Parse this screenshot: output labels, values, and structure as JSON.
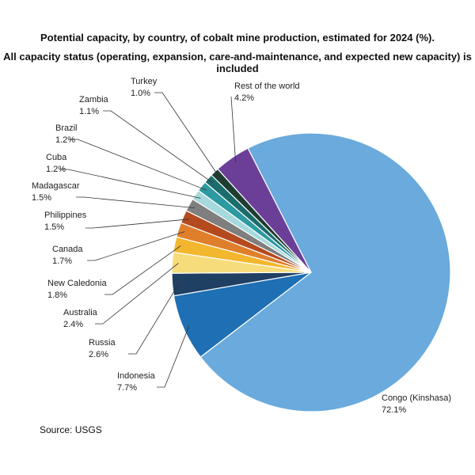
{
  "chart_data": {
    "type": "pie",
    "title": "Potential capacity, by country, of cobalt mine production, estimated for 2024 (%).",
    "subtitle": "All capacity status (operating, expansion, care-and-maintenance, and expected new capacity) is included",
    "source": "Source:  USGS",
    "slices": [
      {
        "label": "Congo (Kinshasa)",
        "value": 72.1,
        "value_text": "72.1%",
        "color": "#6aaadc"
      },
      {
        "label": "Indonesia",
        "value": 7.7,
        "value_text": "7.7%",
        "color": "#1e6fb4"
      },
      {
        "label": "Russia",
        "value": 2.6,
        "value_text": "2.6%",
        "color": "#1f3f63"
      },
      {
        "label": "Australia",
        "value": 2.4,
        "value_text": "2.4%",
        "color": "#f6dc7a"
      },
      {
        "label": "New Caledonia",
        "value": 1.8,
        "value_text": "1.8%",
        "color": "#f2b72e"
      },
      {
        "label": "Canada",
        "value": 1.7,
        "value_text": "1.7%",
        "color": "#e07f2b"
      },
      {
        "label": "Philippines",
        "value": 1.5,
        "value_text": "1.5%",
        "color": "#b54a1f"
      },
      {
        "label": "Madagascar",
        "value": 1.5,
        "value_text": "1.5%",
        "color": "#7f7f7f"
      },
      {
        "label": "Cuba",
        "value": 1.2,
        "value_text": "1.2%",
        "color": "#a6d9dc"
      },
      {
        "label": "Brazil",
        "value": 1.2,
        "value_text": "1.2%",
        "color": "#2c9aa0"
      },
      {
        "label": "Zambia",
        "value": 1.1,
        "value_text": "1.1%",
        "color": "#1b6d6d"
      },
      {
        "label": "Turkey",
        "value": 1.0,
        "value_text": "1.0%",
        "color": "#1d3d33"
      },
      {
        "label": "Rest of the world",
        "value": 4.2,
        "value_text": "4.2%",
        "color": "#6b3f98"
      }
    ]
  }
}
